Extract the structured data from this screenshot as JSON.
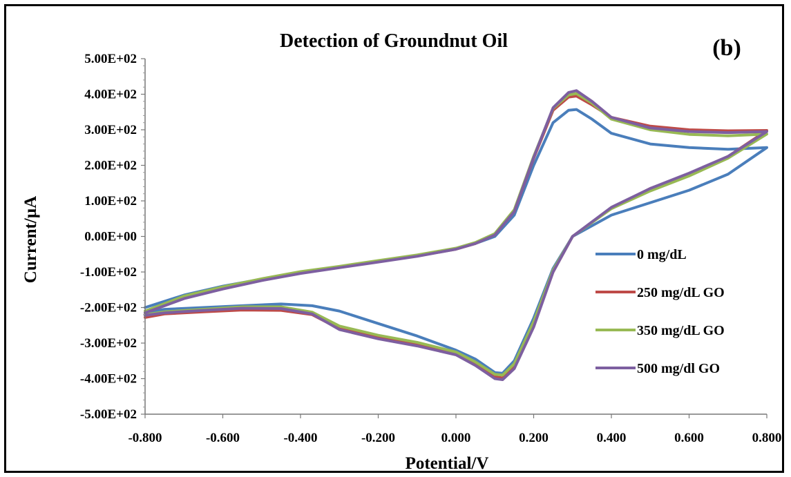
{
  "panel_label": "(b)",
  "chart_data": {
    "type": "line",
    "title": "Detection of Groundnut Oil",
    "xlabel": "Potential/V",
    "ylabel": "Current/µA",
    "xlim": [
      -0.8,
      0.8
    ],
    "ylim": [
      -500,
      500
    ],
    "x_ticks": [
      -0.8,
      -0.6,
      -0.4,
      -0.2,
      0.0,
      0.2,
      0.4,
      0.6,
      0.8
    ],
    "x_tick_labels": [
      "-0.800",
      "-0.600",
      "-0.400",
      "-0.200",
      "0.000",
      "0.200",
      "0.400",
      "0.600",
      "0.800"
    ],
    "y_ticks": [
      500,
      400,
      300,
      200,
      100,
      0,
      -100,
      -200,
      -300,
      -400,
      -500
    ],
    "y_tick_labels": [
      "5.00E+02",
      "4.00E+02",
      "3.00E+02",
      "2.00E+02",
      "1.00E+02",
      "0.00E+00",
      "-1.00E+02",
      "-2.00E+02",
      "-3.00E+02",
      "-4.00E+02",
      "-5.00E+02"
    ],
    "grid": false,
    "legend_position": "right",
    "series": [
      {
        "name": "0 mg/dL",
        "color": "#4a7ebb",
        "x": [
          -0.8,
          -0.7,
          -0.6,
          -0.5,
          -0.4,
          -0.3,
          -0.2,
          -0.1,
          0.0,
          0.05,
          0.1,
          0.15,
          0.2,
          0.25,
          0.29,
          0.31,
          0.35,
          0.4,
          0.5,
          0.6,
          0.7,
          0.8,
          0.8,
          0.7,
          0.6,
          0.5,
          0.4,
          0.3,
          0.25,
          0.2,
          0.15,
          0.12,
          0.1,
          0.05,
          0.0,
          -0.1,
          -0.2,
          -0.3,
          -0.37,
          -0.45,
          -0.55,
          -0.65,
          -0.75,
          -0.8
        ],
        "y": [
          -200,
          -165,
          -140,
          -120,
          -100,
          -85,
          -70,
          -55,
          -35,
          -20,
          0,
          60,
          200,
          320,
          355,
          357,
          330,
          290,
          260,
          250,
          245,
          250,
          250,
          175,
          130,
          95,
          60,
          0,
          -90,
          -230,
          -350,
          -385,
          -383,
          -345,
          -320,
          -280,
          -245,
          -210,
          -195,
          -190,
          -195,
          -200,
          -205,
          -215
        ]
      },
      {
        "name": "250 mg/dL GO",
        "color": "#be4b48",
        "x": [
          -0.8,
          -0.7,
          -0.6,
          -0.5,
          -0.4,
          -0.3,
          -0.2,
          -0.1,
          0.0,
          0.05,
          0.1,
          0.15,
          0.2,
          0.25,
          0.29,
          0.31,
          0.35,
          0.4,
          0.5,
          0.6,
          0.7,
          0.8,
          0.8,
          0.7,
          0.6,
          0.5,
          0.4,
          0.3,
          0.25,
          0.2,
          0.15,
          0.12,
          0.1,
          0.05,
          0.0,
          -0.1,
          -0.2,
          -0.3,
          -0.37,
          -0.45,
          -0.55,
          -0.65,
          -0.75,
          -0.8
        ],
        "y": [
          -215,
          -172,
          -145,
          -122,
          -102,
          -86,
          -70,
          -55,
          -36,
          -20,
          5,
          70,
          220,
          355,
          392,
          395,
          370,
          335,
          310,
          300,
          297,
          298,
          298,
          225,
          175,
          135,
          80,
          0,
          -100,
          -250,
          -365,
          -398,
          -395,
          -360,
          -330,
          -305,
          -285,
          -260,
          -220,
          -208,
          -207,
          -212,
          -218,
          -228
        ]
      },
      {
        "name": "350 mg/dL GO",
        "color": "#98b954",
        "x": [
          -0.8,
          -0.7,
          -0.6,
          -0.5,
          -0.4,
          -0.3,
          -0.2,
          -0.1,
          0.0,
          0.05,
          0.1,
          0.15,
          0.2,
          0.25,
          0.29,
          0.31,
          0.35,
          0.4,
          0.5,
          0.6,
          0.7,
          0.8,
          0.8,
          0.7,
          0.6,
          0.5,
          0.4,
          0.3,
          0.25,
          0.2,
          0.15,
          0.12,
          0.1,
          0.05,
          0.0,
          -0.1,
          -0.2,
          -0.3,
          -0.37,
          -0.45,
          -0.55,
          -0.65,
          -0.75,
          -0.8
        ],
        "y": [
          -210,
          -168,
          -142,
          -119,
          -99,
          -84,
          -68,
          -52,
          -33,
          -17,
          8,
          75,
          225,
          360,
          398,
          402,
          375,
          330,
          300,
          287,
          283,
          288,
          288,
          220,
          170,
          128,
          78,
          0,
          -95,
          -240,
          -358,
          -390,
          -388,
          -353,
          -325,
          -298,
          -278,
          -252,
          -213,
          -198,
          -198,
          -205,
          -212,
          -220
        ]
      },
      {
        "name": "500 mg/dl GO",
        "color": "#7d5fa0",
        "x": [
          -0.8,
          -0.7,
          -0.6,
          -0.5,
          -0.4,
          -0.3,
          -0.2,
          -0.1,
          0.0,
          0.05,
          0.1,
          0.15,
          0.2,
          0.25,
          0.29,
          0.31,
          0.35,
          0.4,
          0.5,
          0.6,
          0.7,
          0.8,
          0.8,
          0.7,
          0.6,
          0.5,
          0.4,
          0.3,
          0.25,
          0.2,
          0.15,
          0.12,
          0.1,
          0.05,
          0.0,
          -0.1,
          -0.2,
          -0.3,
          -0.37,
          -0.45,
          -0.55,
          -0.65,
          -0.75,
          -0.8
        ],
        "y": [
          -215,
          -175,
          -148,
          -124,
          -104,
          -88,
          -72,
          -56,
          -36,
          -20,
          4,
          70,
          222,
          362,
          405,
          410,
          380,
          335,
          305,
          295,
          292,
          295,
          295,
          225,
          178,
          135,
          82,
          0,
          -100,
          -255,
          -372,
          -403,
          -400,
          -363,
          -333,
          -308,
          -288,
          -262,
          -218,
          -203,
          -202,
          -208,
          -215,
          -222
        ]
      }
    ]
  }
}
